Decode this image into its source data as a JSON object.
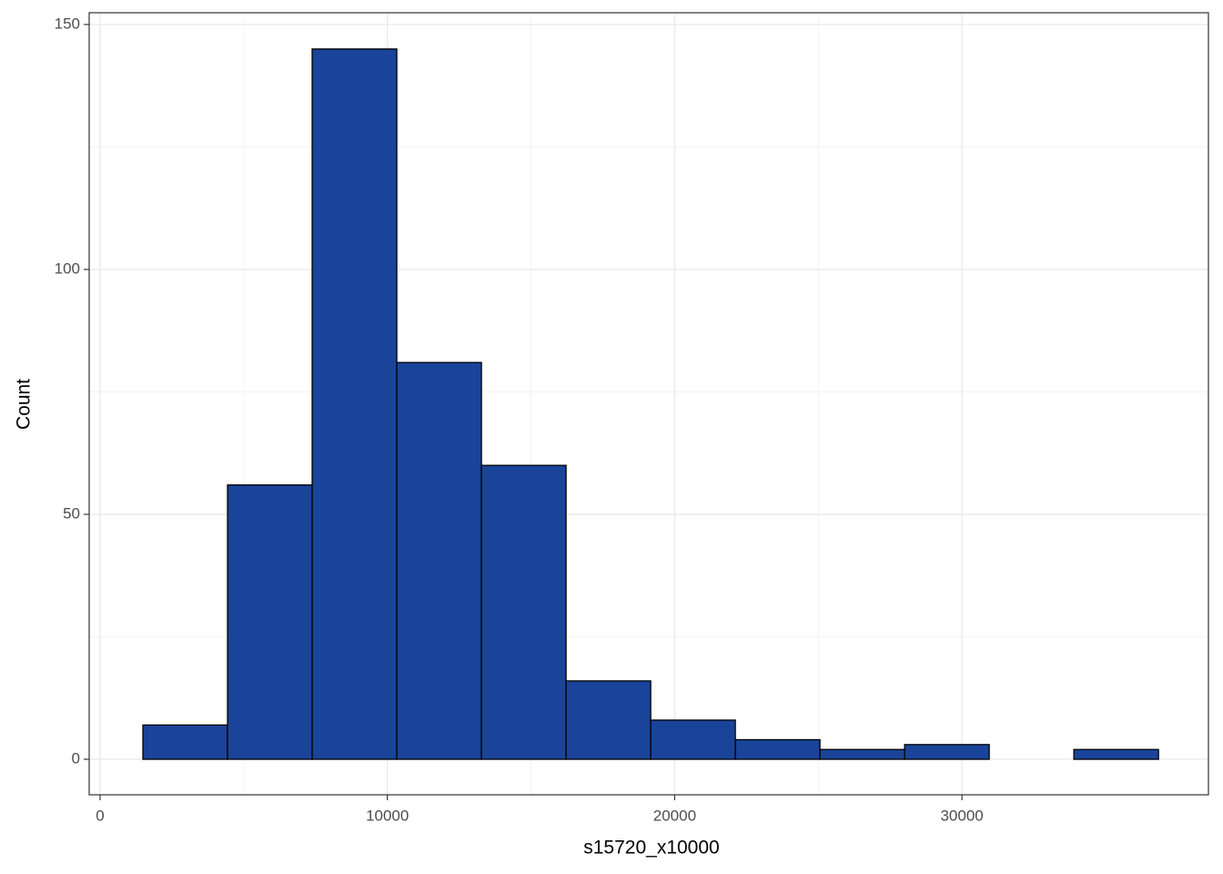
{
  "chart_data": {
    "type": "histogram",
    "x_label": "s15720_x10000",
    "y_label": "Count",
    "bins": [
      1490,
      4436,
      7382,
      10328,
      13274,
      16220,
      19166,
      22112,
      25058,
      28004,
      30950,
      33896,
      36842
    ],
    "values": [
      7,
      56,
      145,
      81,
      60,
      16,
      8,
      4,
      2,
      3,
      0,
      2
    ],
    "color": "#1a4499",
    "edgecolor": "#000000",
    "xlim": [
      -380,
      38580
    ],
    "ylim": [
      -7.25,
      152.4
    ],
    "xticks": [
      0,
      10000,
      20000,
      30000
    ],
    "yticks": [
      0,
      50,
      100,
      150
    ],
    "grid": true
  }
}
